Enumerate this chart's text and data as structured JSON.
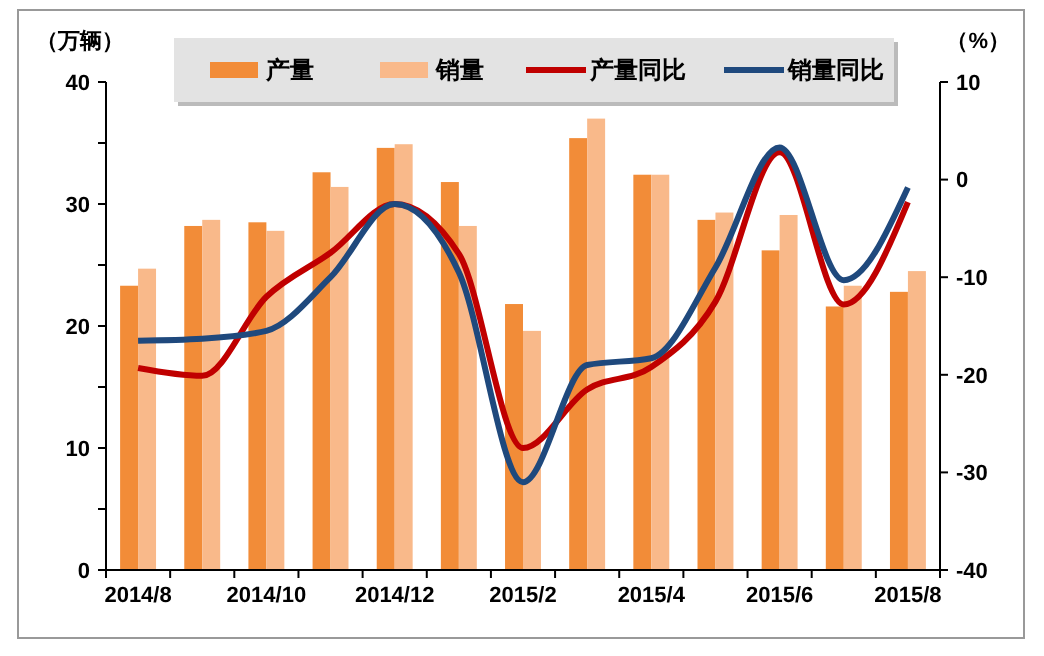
{
  "chart_data": {
    "type": "bar",
    "ylabel": "（万辆）",
    "y2label": "（%）",
    "categories": [
      "2014/8",
      null,
      "2014/10",
      null,
      "2014/12",
      null,
      "2015/2",
      null,
      "2015/4",
      null,
      "2015/6",
      null,
      "2015/8"
    ],
    "series": [
      {
        "name": "产量",
        "color": "#f28c38",
        "values": [
          23.3,
          28.2,
          28.5,
          32.6,
          34.6,
          31.8,
          21.8,
          35.4,
          32.4,
          28.7,
          26.2,
          21.6,
          22.8
        ]
      },
      {
        "name": "销量",
        "color": "#f9b98a",
        "values": [
          24.7,
          28.7,
          27.8,
          31.4,
          34.9,
          28.2,
          19.6,
          37.0,
          32.4,
          29.3,
          29.1,
          23.3,
          24.5
        ]
      },
      {
        "name": "产量同比",
        "type": "line",
        "axis": "y2",
        "color": "#c00000",
        "values": [
          -19.3,
          -20.1,
          -12.0,
          -7.5,
          -2.5,
          -7.6,
          -27.5,
          -21.5,
          -19.2,
          -12.5,
          2.8,
          -12.8,
          -2.3
        ]
      },
      {
        "name": "销量同比",
        "type": "line",
        "axis": "y2",
        "color": "#1f497d",
        "values": [
          -16.5,
          -16.3,
          -15.5,
          -10.0,
          -2.5,
          -9.5,
          -31.0,
          -19.0,
          -18.3,
          -9.0,
          3.3,
          -10.3,
          -0.8
        ]
      }
    ],
    "ylim": [
      0,
      40
    ],
    "yticks": [
      0,
      {
        "value": 5,
        "label": null
      },
      10,
      {
        "value": 15,
        "label": null
      },
      20,
      {
        "value": 25,
        "label": null
      },
      30,
      {
        "value": 35,
        "label": null
      },
      40
    ],
    "y2lim": [
      -40,
      10
    ],
    "y2ticks": [
      -40,
      -30,
      -20,
      -10,
      0,
      10
    ],
    "grid": false,
    "legend": "top",
    "line_style": "solid"
  }
}
